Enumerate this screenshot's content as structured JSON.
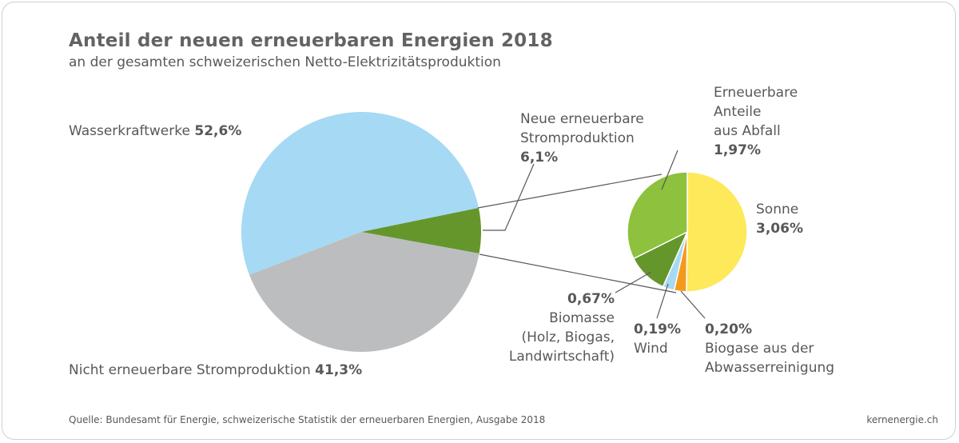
{
  "title": "Anteil der neuen erneuerbaren Energien 2018",
  "subtitle": "an der gesamten schweizerischen Netto-Elektrizitätsproduktion",
  "source": "Quelle: Bundesamt für Energie, schweizerische Statistik der erneuerbaren Energien, Ausgabe 2018",
  "brand": "kernenergie.ch",
  "chart_data": [
    {
      "type": "pie",
      "slices": [
        {
          "label": "Wasserkraftwerke",
          "value": 52.6,
          "value_label": "52,6%",
          "color": "#a6d9f4"
        },
        {
          "label": "Neue erneuerbare Stromproduktion",
          "value": 6.1,
          "value_label": "6,1%",
          "color": "#65962c"
        },
        {
          "label": "Nicht erneuerbare Stromproduktion",
          "value": 41.3,
          "value_label": "41,3%",
          "color": "#bcbdbf"
        }
      ]
    },
    {
      "type": "pie",
      "slices": [
        {
          "label": "Sonne",
          "value": 3.06,
          "value_label": "3,06%",
          "color": "#fde95a"
        },
        {
          "label": "Biogase aus der Abwasserreinigung",
          "value": 0.2,
          "value_label": "0,20%",
          "color": "#f39a1e"
        },
        {
          "label": "Wind",
          "value": 0.19,
          "value_label": "0,19%",
          "color": "#a6d9f4"
        },
        {
          "label": "Biomasse (Holz, Biogas, Landwirtschaft)",
          "value": 0.67,
          "value_label": "0,67%",
          "color": "#65962c"
        },
        {
          "label": "Erneuerbare Anteile aus Abfall",
          "value": 1.97,
          "value_label": "1,97%",
          "color": "#8dc13e"
        }
      ]
    }
  ],
  "labels": {
    "wasser": {
      "text": "Wasserkraftwerke",
      "value": "52,6%"
    },
    "nicht": {
      "text": "Nicht erneuerbare Stromproduktion",
      "value": "41,3%"
    },
    "neue": {
      "line1": "Neue erneuerbare",
      "line2": "Stromproduktion",
      "value": "6,1%"
    },
    "abfall": {
      "line1": "Erneuerbare",
      "line2": "Anteile",
      "line3": "aus Abfall",
      "value": "1,97%"
    },
    "sonne": {
      "text": "Sonne",
      "value": "3,06%"
    },
    "biomasse": {
      "value": "0,67%",
      "line1": "Biomasse",
      "line2": "(Holz, Biogas,",
      "line3": "Landwirtschaft)"
    },
    "wind": {
      "value": "0,19%",
      "text": "Wind"
    },
    "biogase": {
      "value": "0,20%",
      "line1": "Biogase aus der",
      "line2": "Abwasserreinigung"
    }
  }
}
